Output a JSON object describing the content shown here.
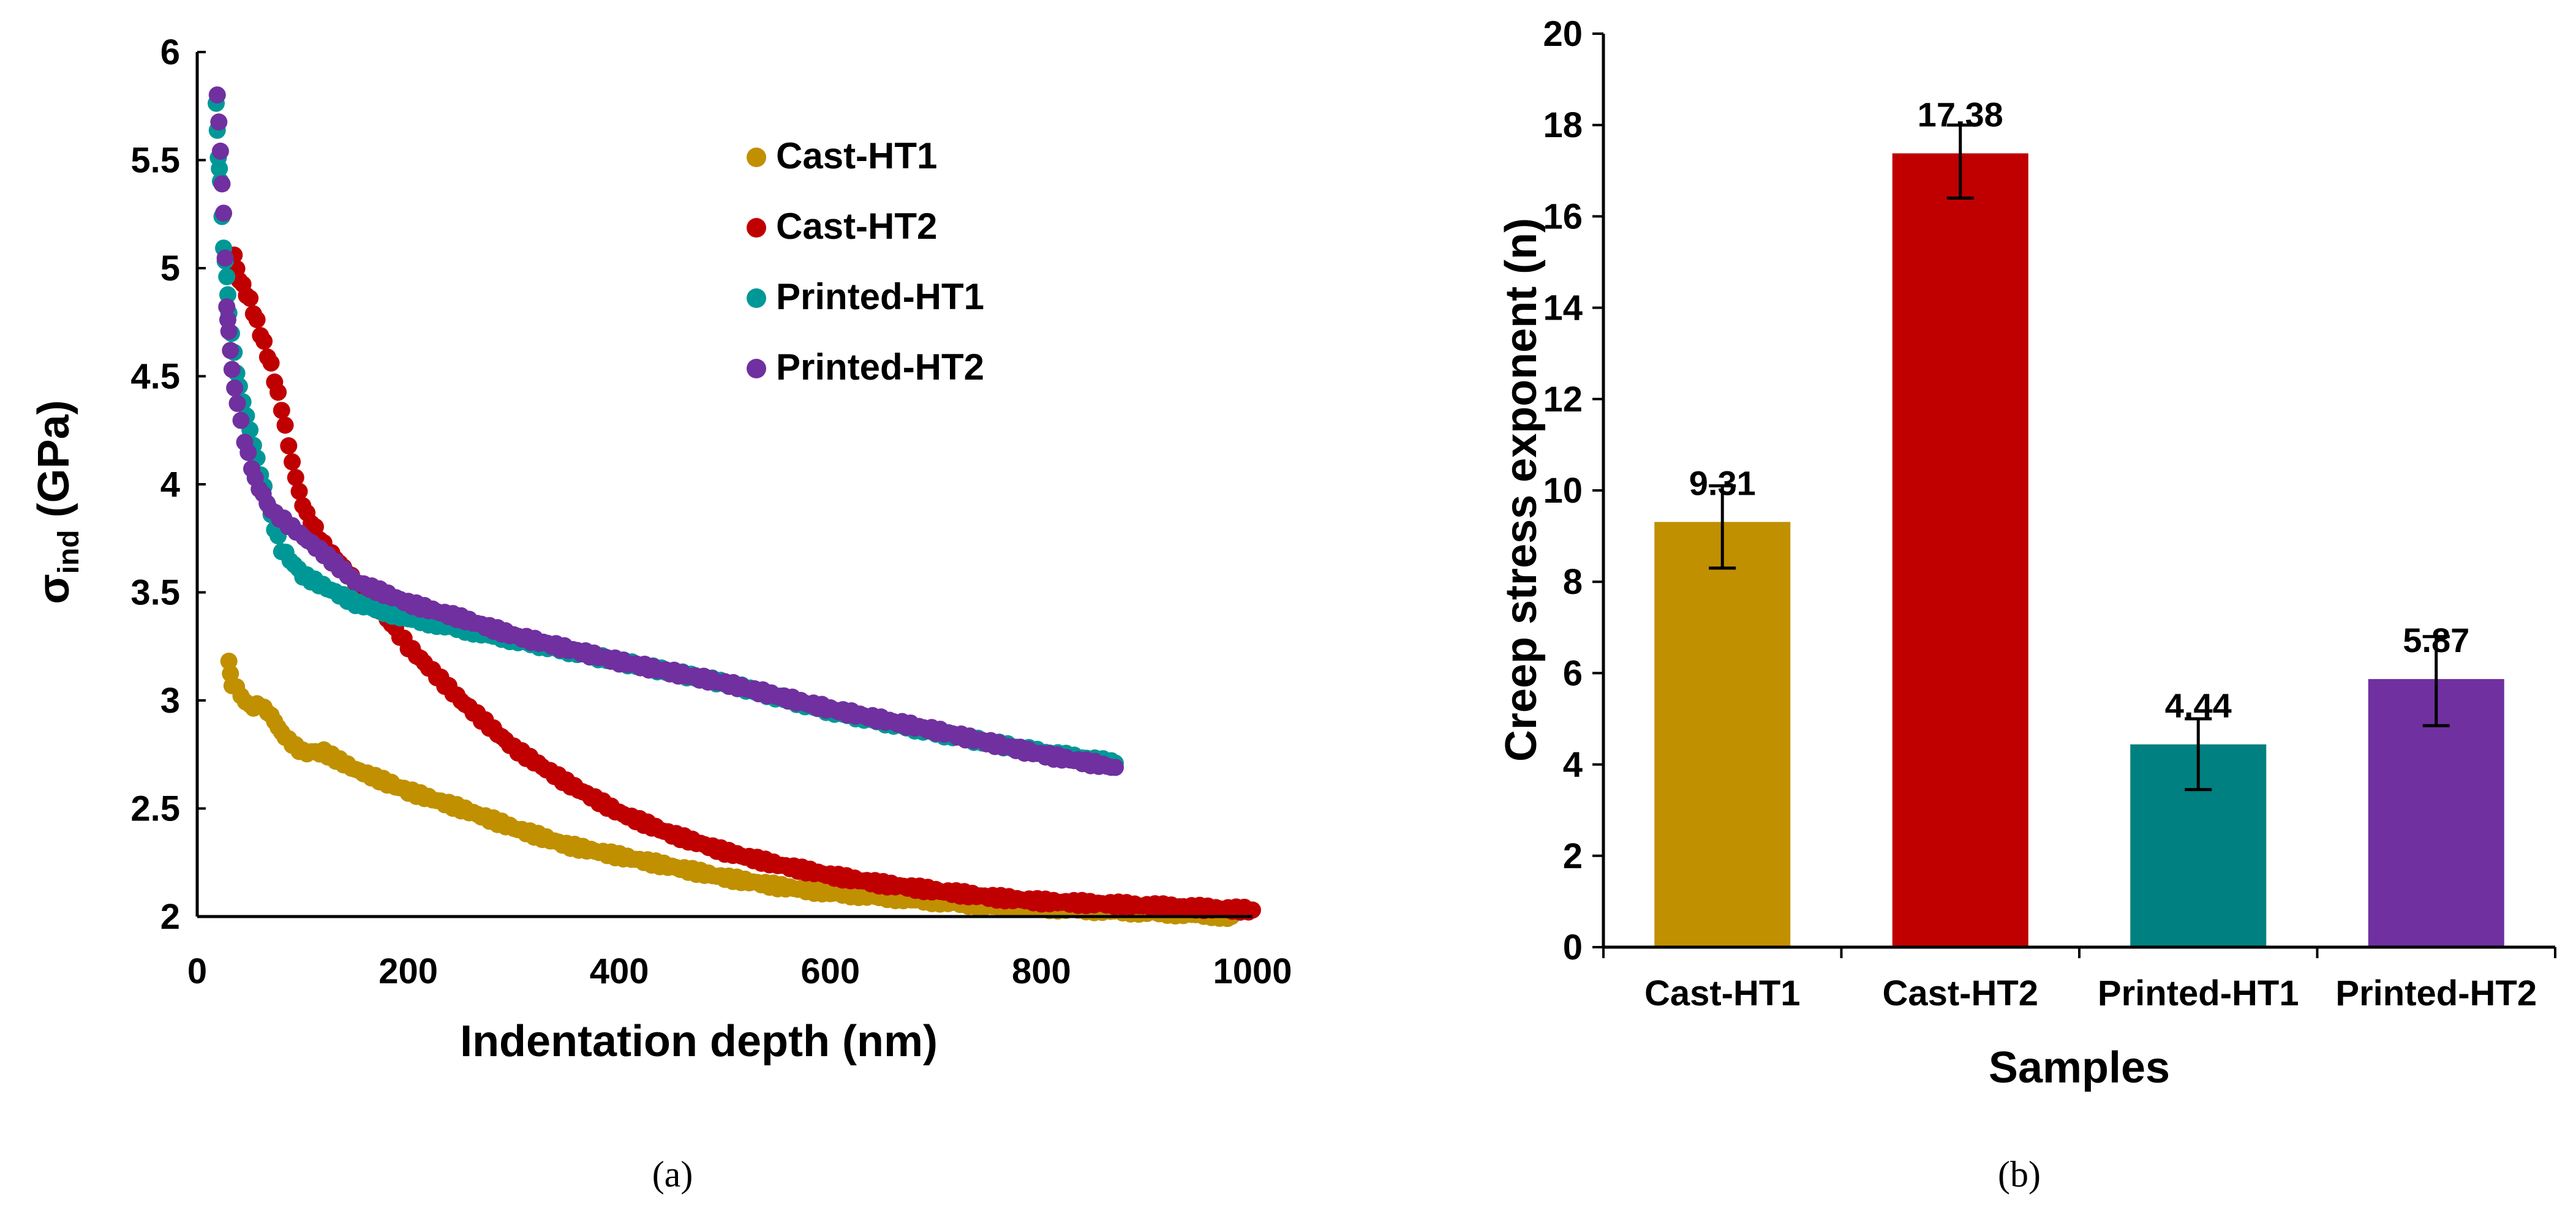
{
  "chart_data": [
    {
      "type": "scatter",
      "panel": "(a)",
      "xlabel": "Indentation depth (nm)",
      "ylabel_main": "σ",
      "ylabel_sub": "ind",
      "ylabel_unit": " (GPa)",
      "xlim": [
        0,
        1000
      ],
      "ylim": [
        2,
        6
      ],
      "xticks": [
        "0",
        "200",
        "400",
        "600",
        "800",
        "1000"
      ],
      "yticks": [
        "2",
        "2.5",
        "3",
        "3.5",
        "4",
        "4.5",
        "5",
        "5.5",
        "6"
      ],
      "legend_position": "top-right",
      "series": [
        {
          "name": "Cast-HT1",
          "color": "#C09000",
          "points": [
            [
              30,
              3.17
            ],
            [
              33,
              3.08
            ],
            [
              50,
              2.97
            ],
            [
              60,
              2.98
            ],
            [
              70,
              2.93
            ],
            [
              80,
              2.85
            ],
            [
              90,
              2.8
            ],
            [
              100,
              2.76
            ],
            [
              120,
              2.76
            ],
            [
              150,
              2.68
            ],
            [
              180,
              2.62
            ],
            [
              200,
              2.58
            ],
            [
              250,
              2.5
            ],
            [
              300,
              2.41
            ],
            [
              350,
              2.33
            ],
            [
              400,
              2.28
            ],
            [
              450,
              2.23
            ],
            [
              500,
              2.18
            ],
            [
              550,
              2.14
            ],
            [
              600,
              2.11
            ],
            [
              650,
              2.09
            ],
            [
              700,
              2.07
            ],
            [
              750,
              2.05
            ],
            [
              800,
              2.04
            ],
            [
              850,
              2.03
            ],
            [
              900,
              2.02
            ],
            [
              950,
              2.01
            ],
            [
              980,
              2.0
            ]
          ]
        },
        {
          "name": "Cast-HT2",
          "color": "#C00000",
          "points": [
            [
              35,
              5.05
            ],
            [
              40,
              4.95
            ],
            [
              50,
              4.85
            ],
            [
              60,
              4.7
            ],
            [
              70,
              4.55
            ],
            [
              80,
              4.35
            ],
            [
              90,
              4.1
            ],
            [
              100,
              3.9
            ],
            [
              120,
              3.72
            ],
            [
              150,
              3.55
            ],
            [
              180,
              3.38
            ],
            [
              200,
              3.25
            ],
            [
              250,
              3.0
            ],
            [
              300,
              2.78
            ],
            [
              350,
              2.62
            ],
            [
              400,
              2.48
            ],
            [
              450,
              2.38
            ],
            [
              500,
              2.3
            ],
            [
              550,
              2.24
            ],
            [
              600,
              2.19
            ],
            [
              650,
              2.15
            ],
            [
              700,
              2.12
            ],
            [
              750,
              2.09
            ],
            [
              800,
              2.07
            ],
            [
              850,
              2.06
            ],
            [
              900,
              2.05
            ],
            [
              950,
              2.04
            ],
            [
              1000,
              2.03
            ]
          ]
        },
        {
          "name": "Printed-HT1",
          "color": "#009896",
          "points": [
            [
              18,
              5.77
            ],
            [
              20,
              5.5
            ],
            [
              22,
              5.4
            ],
            [
              25,
              5.1
            ],
            [
              28,
              4.95
            ],
            [
              30,
              4.8
            ],
            [
              35,
              4.6
            ],
            [
              40,
              4.45
            ],
            [
              50,
              4.25
            ],
            [
              60,
              4.05
            ],
            [
              70,
              3.85
            ],
            [
              80,
              3.7
            ],
            [
              100,
              3.58
            ],
            [
              150,
              3.45
            ],
            [
              200,
              3.38
            ],
            [
              250,
              3.33
            ],
            [
              300,
              3.28
            ],
            [
              400,
              3.18
            ],
            [
              500,
              3.08
            ],
            [
              600,
              2.95
            ],
            [
              700,
              2.85
            ],
            [
              800,
              2.76
            ],
            [
              870,
              2.71
            ]
          ]
        },
        {
          "name": "Printed-HT2",
          "color": "#7030A0",
          "points": [
            [
              19,
              5.79
            ],
            [
              22,
              5.55
            ],
            [
              25,
              5.25
            ],
            [
              28,
              4.82
            ],
            [
              30,
              4.72
            ],
            [
              33,
              4.52
            ],
            [
              38,
              4.38
            ],
            [
              45,
              4.2
            ],
            [
              55,
              4.02
            ],
            [
              70,
              3.88
            ],
            [
              90,
              3.8
            ],
            [
              120,
              3.68
            ],
            [
              150,
              3.55
            ],
            [
              200,
              3.45
            ],
            [
              250,
              3.38
            ],
            [
              300,
              3.3
            ],
            [
              400,
              3.18
            ],
            [
              500,
              3.08
            ],
            [
              600,
              2.96
            ],
            [
              700,
              2.86
            ],
            [
              800,
              2.75
            ],
            [
              870,
              2.69
            ]
          ]
        }
      ]
    },
    {
      "type": "bar",
      "panel": "(b)",
      "xlabel": "Samples",
      "ylabel": "Creep stress exponent (n)",
      "ylim": [
        0,
        20
      ],
      "yticks": [
        "0",
        "2",
        "4",
        "6",
        "8",
        "10",
        "12",
        "14",
        "16",
        "18",
        "20"
      ],
      "categories": [
        "Cast-HT1",
        "Cast-HT2",
        "Printed-HT1",
        "Printed-HT2"
      ],
      "values": [
        9.31,
        17.38,
        4.44,
        5.87
      ],
      "value_labels": [
        "9.31",
        "17.38",
        "4.44",
        "5.87"
      ],
      "errors": [
        [
          8.3,
          10.1
        ],
        [
          16.4,
          18.0
        ],
        [
          3.45,
          5.0
        ],
        [
          4.85,
          6.8
        ]
      ],
      "colors": [
        "#C09000",
        "#C00000",
        "#008080",
        "#7030A0"
      ]
    }
  ]
}
